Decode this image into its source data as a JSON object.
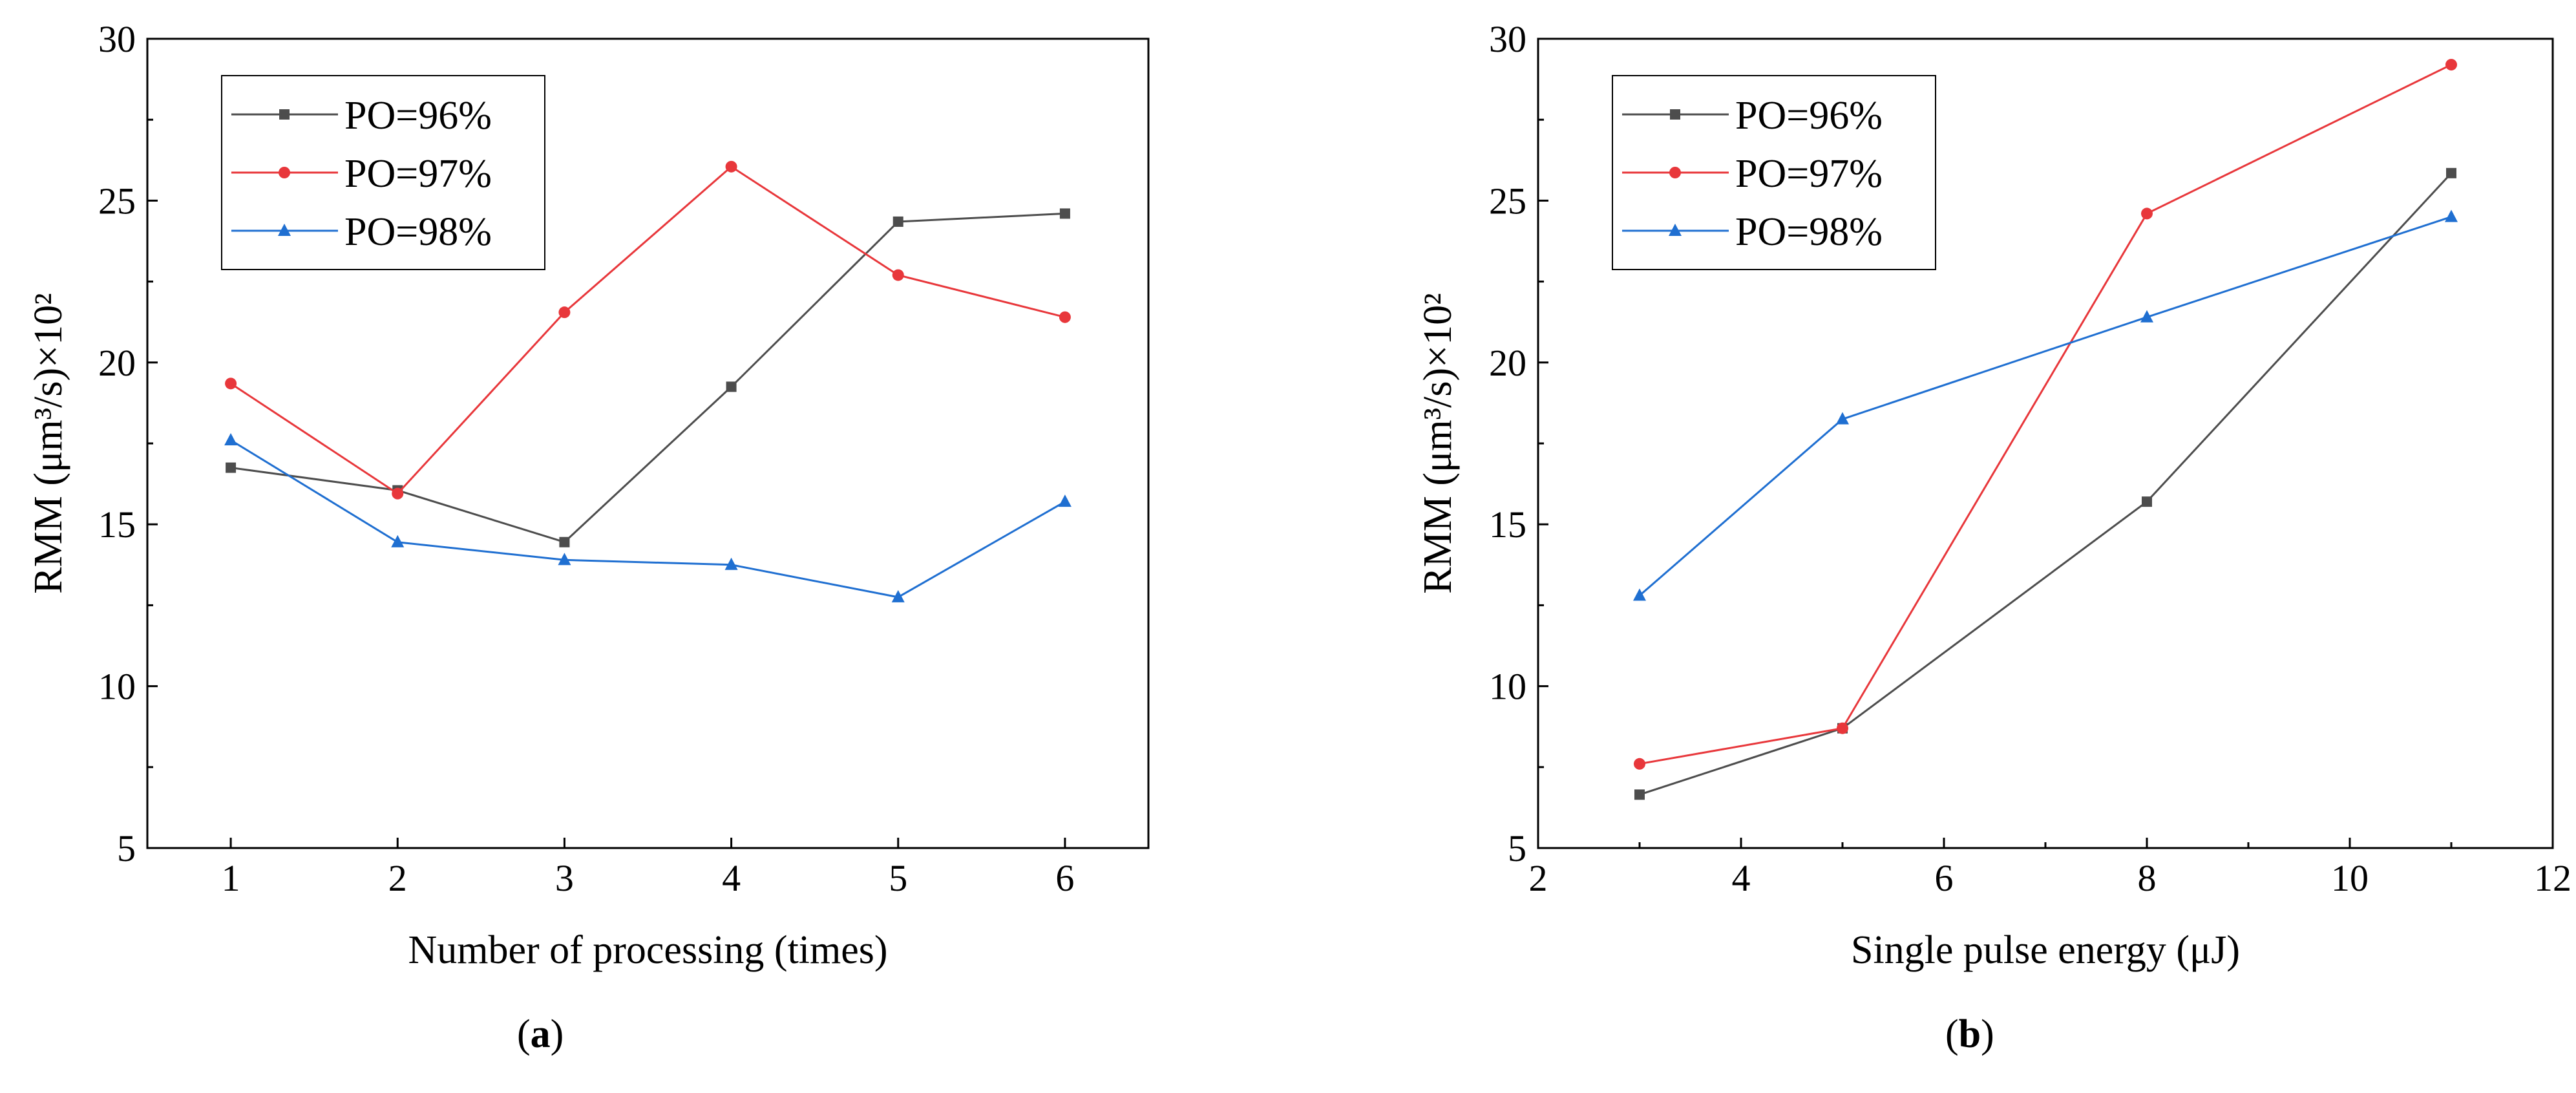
{
  "chart_data": [
    {
      "panel_label": "a",
      "type": "line",
      "xlabel": "Number of processing (times)",
      "ylabel": "RMM (μm³/s)×10²",
      "xlim": [
        0.5,
        6.5
      ],
      "ylim": [
        5,
        30
      ],
      "xticks": [
        1,
        2,
        3,
        4,
        5,
        6
      ],
      "yticks": [
        5,
        10,
        15,
        20,
        25,
        30
      ],
      "grid": false,
      "legend_position": "top-left",
      "x": [
        1,
        2,
        3,
        4,
        5,
        6
      ],
      "series": [
        {
          "name": "PO=96%",
          "color": "#4d4d4d",
          "marker": "square",
          "values": [
            16.75,
            16.05,
            14.45,
            19.25,
            24.35,
            24.6
          ]
        },
        {
          "name": "PO=97%",
          "color": "#e8373b",
          "marker": "circle",
          "values": [
            19.35,
            15.95,
            21.55,
            26.05,
            22.7,
            21.4
          ]
        },
        {
          "name": "PO=98%",
          "color": "#1f6fd1",
          "marker": "triangle",
          "values": [
            17.6,
            14.45,
            13.9,
            13.75,
            12.75,
            15.7
          ]
        }
      ]
    },
    {
      "panel_label": "b",
      "type": "line",
      "xlabel": "Single pulse energy (μJ)",
      "ylabel": "RMM (μm³/s)×10²",
      "xlim": [
        2,
        12
      ],
      "ylim": [
        5,
        30
      ],
      "xticks": [
        2,
        4,
        6,
        8,
        10,
        12
      ],
      "yticks": [
        5,
        10,
        15,
        20,
        25,
        30
      ],
      "grid": false,
      "legend_position": "top-left",
      "x": [
        3,
        5,
        8,
        11
      ],
      "series": [
        {
          "name": "PO=96%",
          "color": "#4d4d4d",
          "marker": "square",
          "values": [
            6.65,
            8.7,
            15.7,
            25.85
          ]
        },
        {
          "name": "PO=97%",
          "color": "#e8373b",
          "marker": "circle",
          "values": [
            7.6,
            8.7,
            24.6,
            29.2
          ]
        },
        {
          "name": "PO=98%",
          "color": "#1f6fd1",
          "marker": "triangle",
          "values": [
            12.8,
            18.25,
            21.4,
            24.5
          ]
        }
      ]
    }
  ],
  "captions": {
    "a": "a",
    "b": "b"
  }
}
